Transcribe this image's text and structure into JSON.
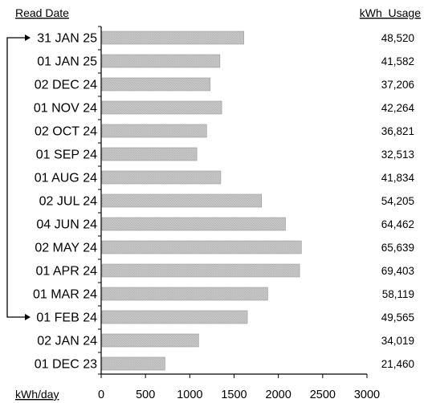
{
  "chart_data": {
    "type": "bar",
    "orientation": "horizontal",
    "categories": [
      "31 JAN 25",
      "01 JAN 25",
      "02 DEC 24",
      "01 NOV 24",
      "02 OCT 24",
      "01 SEP 24",
      "01 AUG 24",
      "02 JUL 24",
      "04 JUN 24",
      "02 MAY 24",
      "01 APR 24",
      "01 MAR 24",
      "01 FEB 24",
      "02 JAN 24",
      "01 DEC 23"
    ],
    "values": [
      1610,
      1340,
      1230,
      1360,
      1190,
      1080,
      1350,
      1810,
      2080,
      2260,
      2240,
      1880,
      1650,
      1100,
      720
    ],
    "kwh_usage": [
      "48,520",
      "41,582",
      "37,206",
      "42,264",
      "36,821",
      "32,513",
      "41,834",
      "54,205",
      "64,462",
      "65,639",
      "69,403",
      "58,119",
      "49,565",
      "34,019",
      "21,460"
    ],
    "xticks": [
      0,
      500,
      1000,
      1500,
      2000,
      2500,
      3000
    ],
    "xlim": [
      0,
      3000
    ],
    "xlabel": "kWh/day",
    "category_header": "Read Date",
    "value_header": "kWh  Usage",
    "bracket": {
      "from": "31 JAN 25",
      "to": "01 FEB 24"
    },
    "colors": {
      "bar_fill": "#c8c8c8",
      "bar_stroke": "#9a9a9a",
      "axis": "#000000"
    }
  }
}
